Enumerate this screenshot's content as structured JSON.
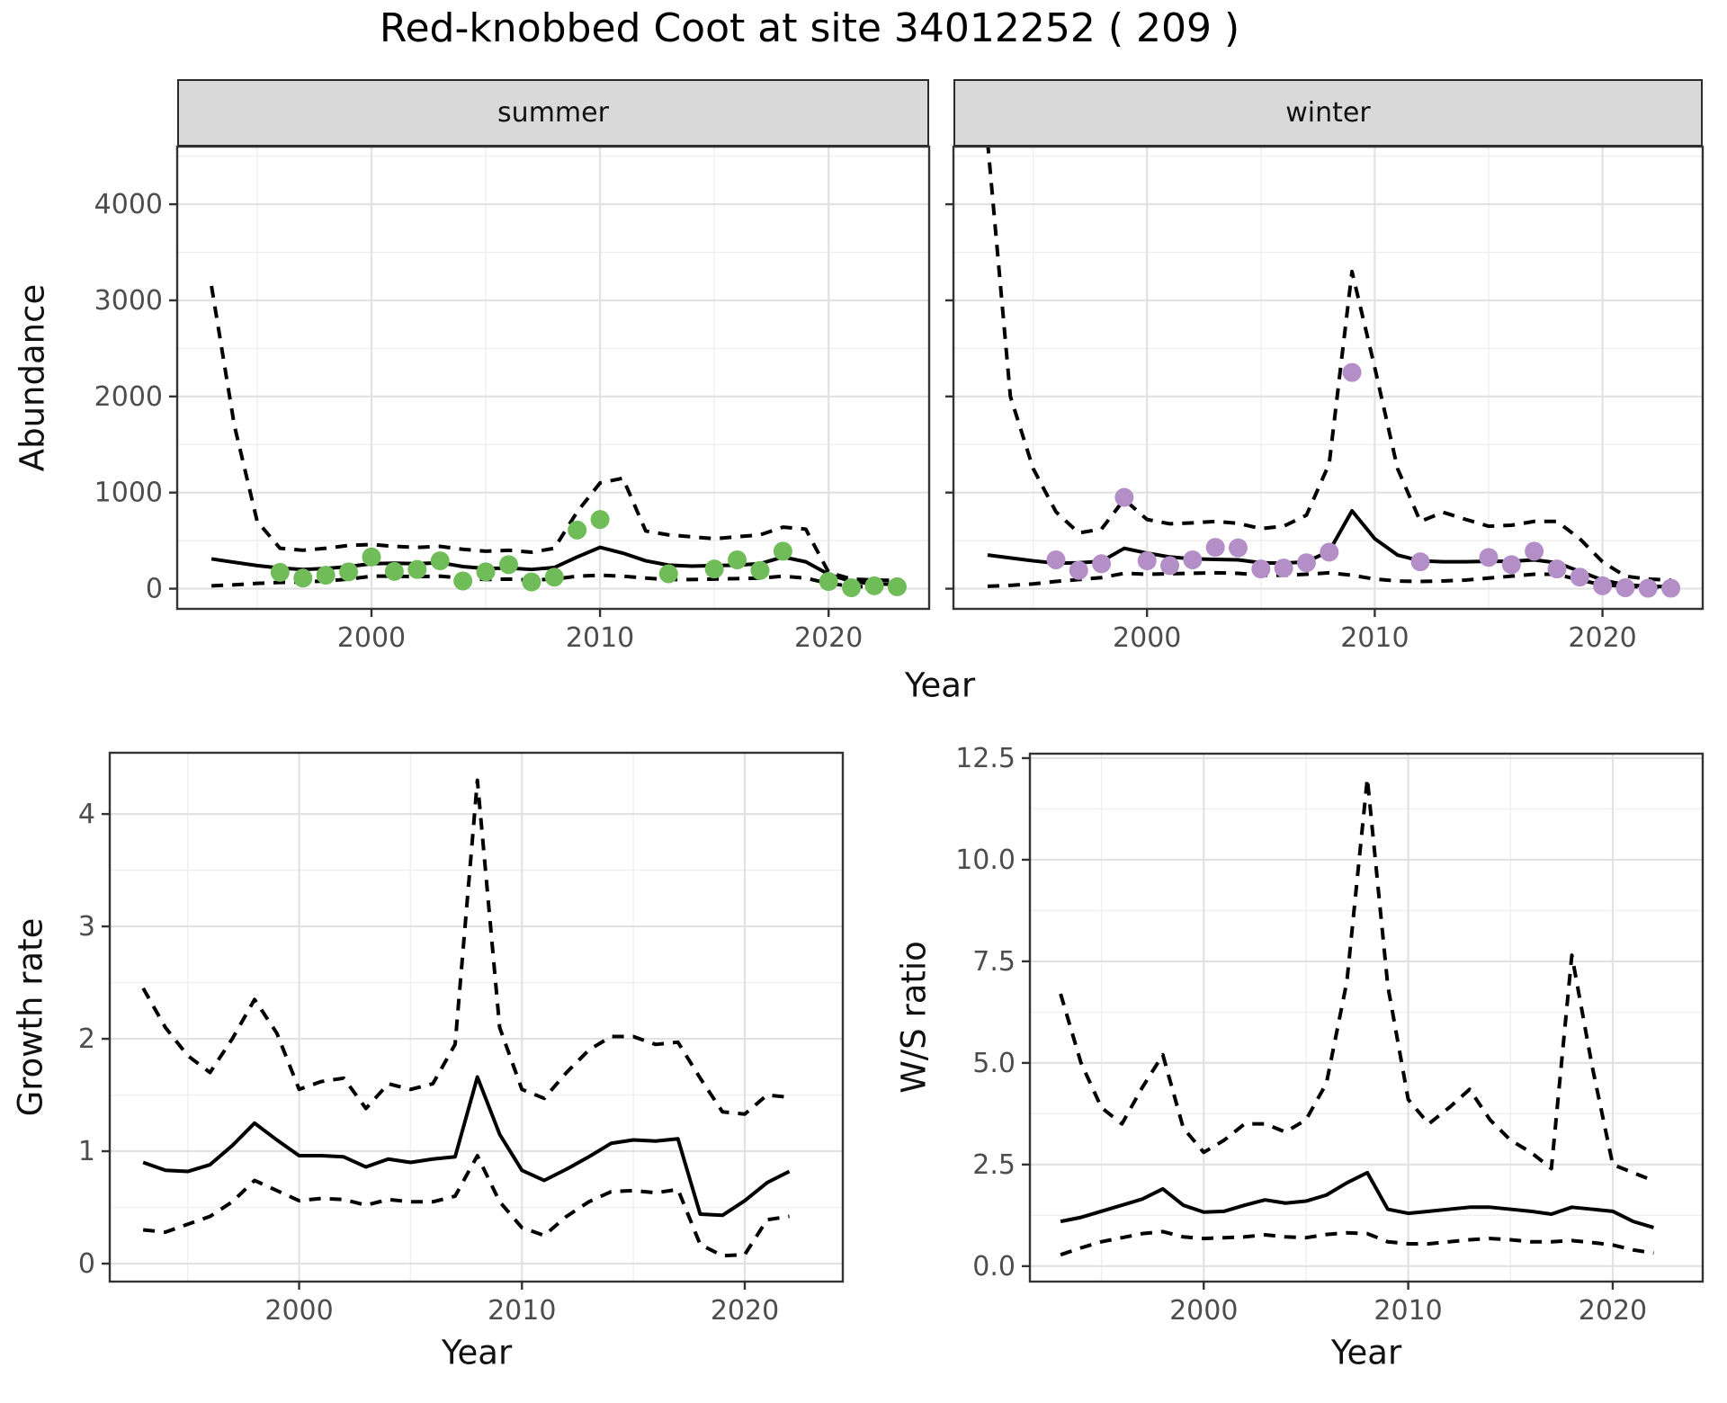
{
  "title": "Red-knobbed Coot at site 34012252 ( 209 )",
  "facets": {
    "summer_label": "summer",
    "winter_label": "winter"
  },
  "axes": {
    "abundance_label": "Abundance",
    "growth_label": "Growth rate",
    "ws_label": "W/S ratio",
    "year_label_top": "Year",
    "year_label_bottom_left": "Year",
    "year_label_bottom_right": "Year"
  },
  "colors": {
    "summer_point": "#70BC59",
    "winter_point": "#B48EC6",
    "line": "#000000",
    "strip_bg": "#D9D9D9",
    "grid_major": "#E2E2E2",
    "grid_minor": "#EFEFEF",
    "axis_text": "#4D4D4D",
    "panel_border": "#333333"
  },
  "chart_data": [
    {
      "id": "abundance-summer",
      "type": "line",
      "title": "Abundance, summer facet: fitted line with dashed 95% CI and observed counts",
      "xlabel": "Year",
      "ylabel": "Abundance",
      "facet": "summer",
      "xlim": [
        1991.5,
        2024.4
      ],
      "ylim": [
        -210,
        4600
      ],
      "x_ticks": [
        2000,
        2010,
        2020
      ],
      "x_tick_labels": [
        "2000",
        "2010",
        "2020"
      ],
      "x_minor": [
        1995,
        2005,
        2015
      ],
      "y_ticks": [
        0,
        1000,
        2000,
        3000,
        4000
      ],
      "y_tick_labels": [
        "0",
        "1000",
        "2000",
        "3000",
        "4000"
      ],
      "y_minor": [
        500,
        1500,
        2500,
        3500,
        4500
      ],
      "years": [
        1993,
        1994,
        1995,
        1996,
        1997,
        1998,
        1999,
        2000,
        2001,
        2002,
        2003,
        2004,
        2005,
        2006,
        2007,
        2008,
        2009,
        2010,
        2011,
        2012,
        2013,
        2014,
        2015,
        2016,
        2017,
        2018,
        2019,
        2020,
        2021,
        2022,
        2023
      ],
      "series": [
        {
          "name": "fit",
          "style": "solid",
          "values": [
            310,
            275,
            240,
            215,
            200,
            210,
            230,
            260,
            265,
            260,
            270,
            230,
            210,
            215,
            200,
            220,
            330,
            430,
            370,
            290,
            245,
            235,
            240,
            245,
            260,
            330,
            280,
            150,
            75,
            50,
            45
          ]
        },
        {
          "name": "upper_ci",
          "style": "dashed",
          "values": [
            3150,
            1700,
            700,
            420,
            400,
            420,
            450,
            460,
            440,
            430,
            440,
            410,
            390,
            400,
            380,
            420,
            800,
            1100,
            1150,
            600,
            560,
            540,
            520,
            540,
            560,
            640,
            620,
            170,
            100,
            90,
            85
          ]
        },
        {
          "name": "lower_ci",
          "style": "dashed",
          "values": [
            30,
            40,
            55,
            65,
            70,
            80,
            100,
            130,
            130,
            125,
            130,
            110,
            95,
            100,
            90,
            100,
            130,
            140,
            130,
            110,
            95,
            95,
            100,
            105,
            110,
            130,
            110,
            55,
            25,
            15,
            12
          ]
        }
      ],
      "points": {
        "color_key": "summer_point",
        "years": [
          1996,
          1997,
          1998,
          1999,
          2000,
          2001,
          2002,
          2003,
          2004,
          2005,
          2006,
          2007,
          2008,
          2009,
          2010,
          2013,
          2015,
          2016,
          2017,
          2018,
          2020,
          2021,
          2022,
          2023
        ],
        "values": [
          170,
          110,
          140,
          175,
          330,
          180,
          200,
          290,
          80,
          175,
          250,
          70,
          120,
          610,
          720,
          155,
          205,
          300,
          190,
          390,
          75,
          10,
          30,
          20
        ]
      }
    },
    {
      "id": "abundance-winter",
      "type": "line",
      "title": "Abundance, winter facet: fitted line with dashed 95% CI and observed counts",
      "xlabel": "Year",
      "ylabel": "Abundance",
      "facet": "winter",
      "xlim": [
        1991.5,
        2024.4
      ],
      "ylim": [
        -210,
        4600
      ],
      "x_ticks": [
        2000,
        2010,
        2020
      ],
      "x_tick_labels": [
        "2000",
        "2010",
        "2020"
      ],
      "x_minor": [
        1995,
        2005,
        2015
      ],
      "y_ticks": [
        0,
        1000,
        2000,
        3000,
        4000
      ],
      "y_tick_labels": [
        "0",
        "1000",
        "2000",
        "3000",
        "4000"
      ],
      "y_minor": [
        500,
        1500,
        2500,
        3500,
        4500
      ],
      "years": [
        1993,
        1994,
        1995,
        1996,
        1997,
        1998,
        1999,
        2000,
        2001,
        2002,
        2003,
        2004,
        2005,
        2006,
        2007,
        2008,
        2009,
        2010,
        2011,
        2012,
        2013,
        2014,
        2015,
        2016,
        2017,
        2018,
        2019,
        2020,
        2021,
        2022,
        2023
      ],
      "series": [
        {
          "name": "fit",
          "style": "solid",
          "values": [
            350,
            320,
            290,
            265,
            270,
            285,
            420,
            370,
            330,
            310,
            305,
            300,
            270,
            265,
            280,
            390,
            810,
            520,
            350,
            290,
            280,
            280,
            285,
            285,
            300,
            270,
            180,
            90,
            40,
            25,
            20
          ]
        },
        {
          "name": "upper_ci",
          "style": "dashed",
          "values": [
            4650,
            2000,
            1250,
            800,
            580,
            620,
            930,
            720,
            675,
            685,
            700,
            680,
            625,
            650,
            765,
            1300,
            3300,
            2300,
            1250,
            700,
            795,
            720,
            650,
            660,
            700,
            700,
            520,
            280,
            130,
            100,
            90
          ]
        },
        {
          "name": "lower_ci",
          "style": "dashed",
          "values": [
            25,
            35,
            50,
            75,
            95,
            115,
            160,
            150,
            155,
            160,
            165,
            160,
            140,
            140,
            150,
            165,
            140,
            100,
            80,
            75,
            80,
            90,
            110,
            130,
            150,
            150,
            90,
            40,
            25,
            15,
            10
          ]
        }
      ],
      "points": {
        "color_key": "winter_point",
        "years": [
          1996,
          1997,
          1998,
          1999,
          2000,
          2001,
          2002,
          2003,
          2004,
          2005,
          2006,
          2007,
          2008,
          2009,
          2012,
          2015,
          2016,
          2017,
          2018,
          2019,
          2020,
          2021,
          2022,
          2023
        ],
        "values": [
          300,
          190,
          260,
          950,
          290,
          240,
          300,
          430,
          425,
          205,
          215,
          270,
          380,
          2250,
          280,
          325,
          250,
          390,
          205,
          120,
          30,
          10,
          5,
          5
        ]
      }
    },
    {
      "id": "growth-rate",
      "type": "line",
      "title": "Growth rate: fitted line with dashed 95% CI",
      "xlabel": "Year",
      "ylabel": "Growth rate",
      "facet": null,
      "xlim": [
        1991.5,
        2024.4
      ],
      "ylim": [
        -0.16,
        4.545
      ],
      "x_ticks": [
        2000,
        2010,
        2020
      ],
      "x_tick_labels": [
        "2000",
        "2010",
        "2020"
      ],
      "x_minor": [
        1995,
        2005,
        2015
      ],
      "y_ticks": [
        0,
        1,
        2,
        3,
        4
      ],
      "y_tick_labels": [
        "0",
        "1",
        "2",
        "3",
        "4"
      ],
      "y_minor": [
        0.5,
        1.5,
        2.5,
        3.5
      ],
      "years": [
        1993,
        1994,
        1995,
        1996,
        1997,
        1998,
        1999,
        2000,
        2001,
        2002,
        2003,
        2004,
        2005,
        2006,
        2007,
        2008,
        2009,
        2010,
        2011,
        2012,
        2013,
        2014,
        2015,
        2016,
        2017,
        2018,
        2019,
        2020,
        2021,
        2022
      ],
      "series": [
        {
          "name": "fit",
          "style": "solid",
          "values": [
            0.9,
            0.83,
            0.82,
            0.88,
            1.05,
            1.25,
            1.1,
            0.96,
            0.96,
            0.95,
            0.86,
            0.93,
            0.9,
            0.93,
            0.95,
            1.66,
            1.15,
            0.83,
            0.74,
            0.84,
            0.95,
            1.07,
            1.1,
            1.09,
            1.11,
            0.44,
            0.43,
            0.56,
            0.72,
            0.82
          ]
        },
        {
          "name": "upper_ci",
          "style": "dashed",
          "values": [
            2.45,
            2.1,
            1.85,
            1.7,
            2.0,
            2.35,
            2.05,
            1.55,
            1.62,
            1.65,
            1.38,
            1.6,
            1.55,
            1.6,
            1.95,
            4.3,
            2.1,
            1.55,
            1.47,
            1.7,
            1.9,
            2.02,
            2.02,
            1.95,
            1.97,
            1.65,
            1.35,
            1.33,
            1.5,
            1.48
          ]
        },
        {
          "name": "lower_ci",
          "style": "dashed",
          "values": [
            0.3,
            0.28,
            0.35,
            0.42,
            0.55,
            0.74,
            0.65,
            0.56,
            0.58,
            0.57,
            0.52,
            0.57,
            0.55,
            0.55,
            0.6,
            0.96,
            0.55,
            0.32,
            0.25,
            0.42,
            0.55,
            0.64,
            0.65,
            0.63,
            0.66,
            0.17,
            0.07,
            0.08,
            0.39,
            0.42
          ]
        }
      ],
      "points": null
    },
    {
      "id": "ws-ratio",
      "type": "line",
      "title": "Winter/Summer ratio: fitted line with dashed 95% CI",
      "xlabel": "Year",
      "ylabel": "W/S ratio",
      "facet": null,
      "xlim": [
        1991.5,
        2024.4
      ],
      "ylim": [
        -0.38,
        12.61
      ],
      "x_ticks": [
        2000,
        2010,
        2020
      ],
      "x_tick_labels": [
        "2000",
        "2010",
        "2020"
      ],
      "x_minor": [
        1995,
        2005,
        2015
      ],
      "y_ticks": [
        0,
        2.5,
        5,
        7.5,
        10,
        12.5
      ],
      "y_tick_labels": [
        "0.0",
        "2.5",
        "5.0",
        "7.5",
        "10.0",
        "12.5"
      ],
      "y_minor": [
        1.25,
        3.75,
        6.25,
        8.75,
        11.25
      ],
      "years": [
        1993,
        1994,
        1995,
        1996,
        1997,
        1998,
        1999,
        2000,
        2001,
        2002,
        2003,
        2004,
        2005,
        2006,
        2007,
        2008,
        2009,
        2010,
        2011,
        2012,
        2013,
        2014,
        2015,
        2016,
        2017,
        2018,
        2019,
        2020,
        2021,
        2022
      ],
      "series": [
        {
          "name": "fit",
          "style": "solid",
          "values": [
            1.1,
            1.2,
            1.35,
            1.5,
            1.65,
            1.9,
            1.5,
            1.33,
            1.35,
            1.5,
            1.63,
            1.55,
            1.6,
            1.75,
            2.05,
            2.3,
            1.4,
            1.3,
            1.35,
            1.4,
            1.45,
            1.45,
            1.4,
            1.35,
            1.28,
            1.45,
            1.4,
            1.35,
            1.1,
            0.95
          ]
        },
        {
          "name": "upper_ci",
          "style": "dashed",
          "values": [
            6.7,
            5.0,
            3.9,
            3.5,
            4.4,
            5.2,
            3.4,
            2.8,
            3.1,
            3.5,
            3.5,
            3.3,
            3.6,
            4.5,
            7.0,
            12.0,
            6.9,
            4.1,
            3.5,
            3.9,
            4.35,
            3.6,
            3.1,
            2.8,
            2.4,
            7.65,
            4.9,
            2.5,
            2.3,
            2.1
          ]
        },
        {
          "name": "lower_ci",
          "style": "dashed",
          "values": [
            0.28,
            0.45,
            0.6,
            0.7,
            0.8,
            0.85,
            0.72,
            0.68,
            0.7,
            0.72,
            0.77,
            0.72,
            0.7,
            0.78,
            0.82,
            0.8,
            0.6,
            0.55,
            0.55,
            0.6,
            0.65,
            0.68,
            0.65,
            0.6,
            0.6,
            0.63,
            0.58,
            0.52,
            0.4,
            0.32
          ]
        }
      ],
      "points": null
    }
  ]
}
